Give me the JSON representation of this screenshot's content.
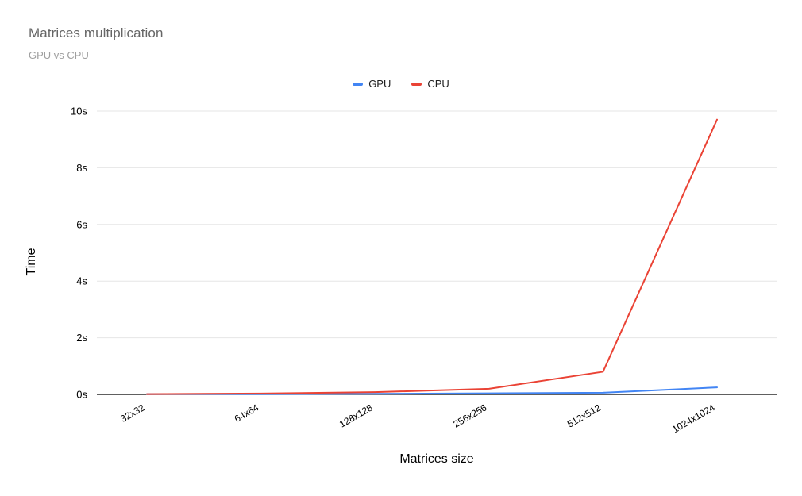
{
  "chart_data": {
    "type": "line",
    "title": "Matrices multiplication",
    "subtitle": "GPU vs CPU",
    "xlabel": "Matrices size",
    "ylabel": "Time",
    "categories": [
      "32x32",
      "64x64",
      "128x128",
      "256x256",
      "512x512",
      "1024x1024"
    ],
    "series": [
      {
        "name": "GPU",
        "color": "#4285f4",
        "values": [
          0.01,
          0.01,
          0.02,
          0.04,
          0.06,
          0.25
        ]
      },
      {
        "name": "CPU",
        "color": "#ea4335",
        "values": [
          0.01,
          0.03,
          0.08,
          0.2,
          0.8,
          9.7
        ]
      }
    ],
    "ylim": [
      0,
      10
    ],
    "yticks": [
      0,
      2,
      4,
      6,
      8,
      10
    ],
    "ytick_labels": [
      "0s",
      "2s",
      "4s",
      "6s",
      "8s",
      "10s"
    ],
    "grid": true,
    "legend_position": "top",
    "colors": {
      "gridline": "#e6e6e6",
      "axis_line": "#000000",
      "tick_text": "#000000",
      "title_text": "#666666",
      "subtitle_text": "#9e9e9e"
    }
  }
}
